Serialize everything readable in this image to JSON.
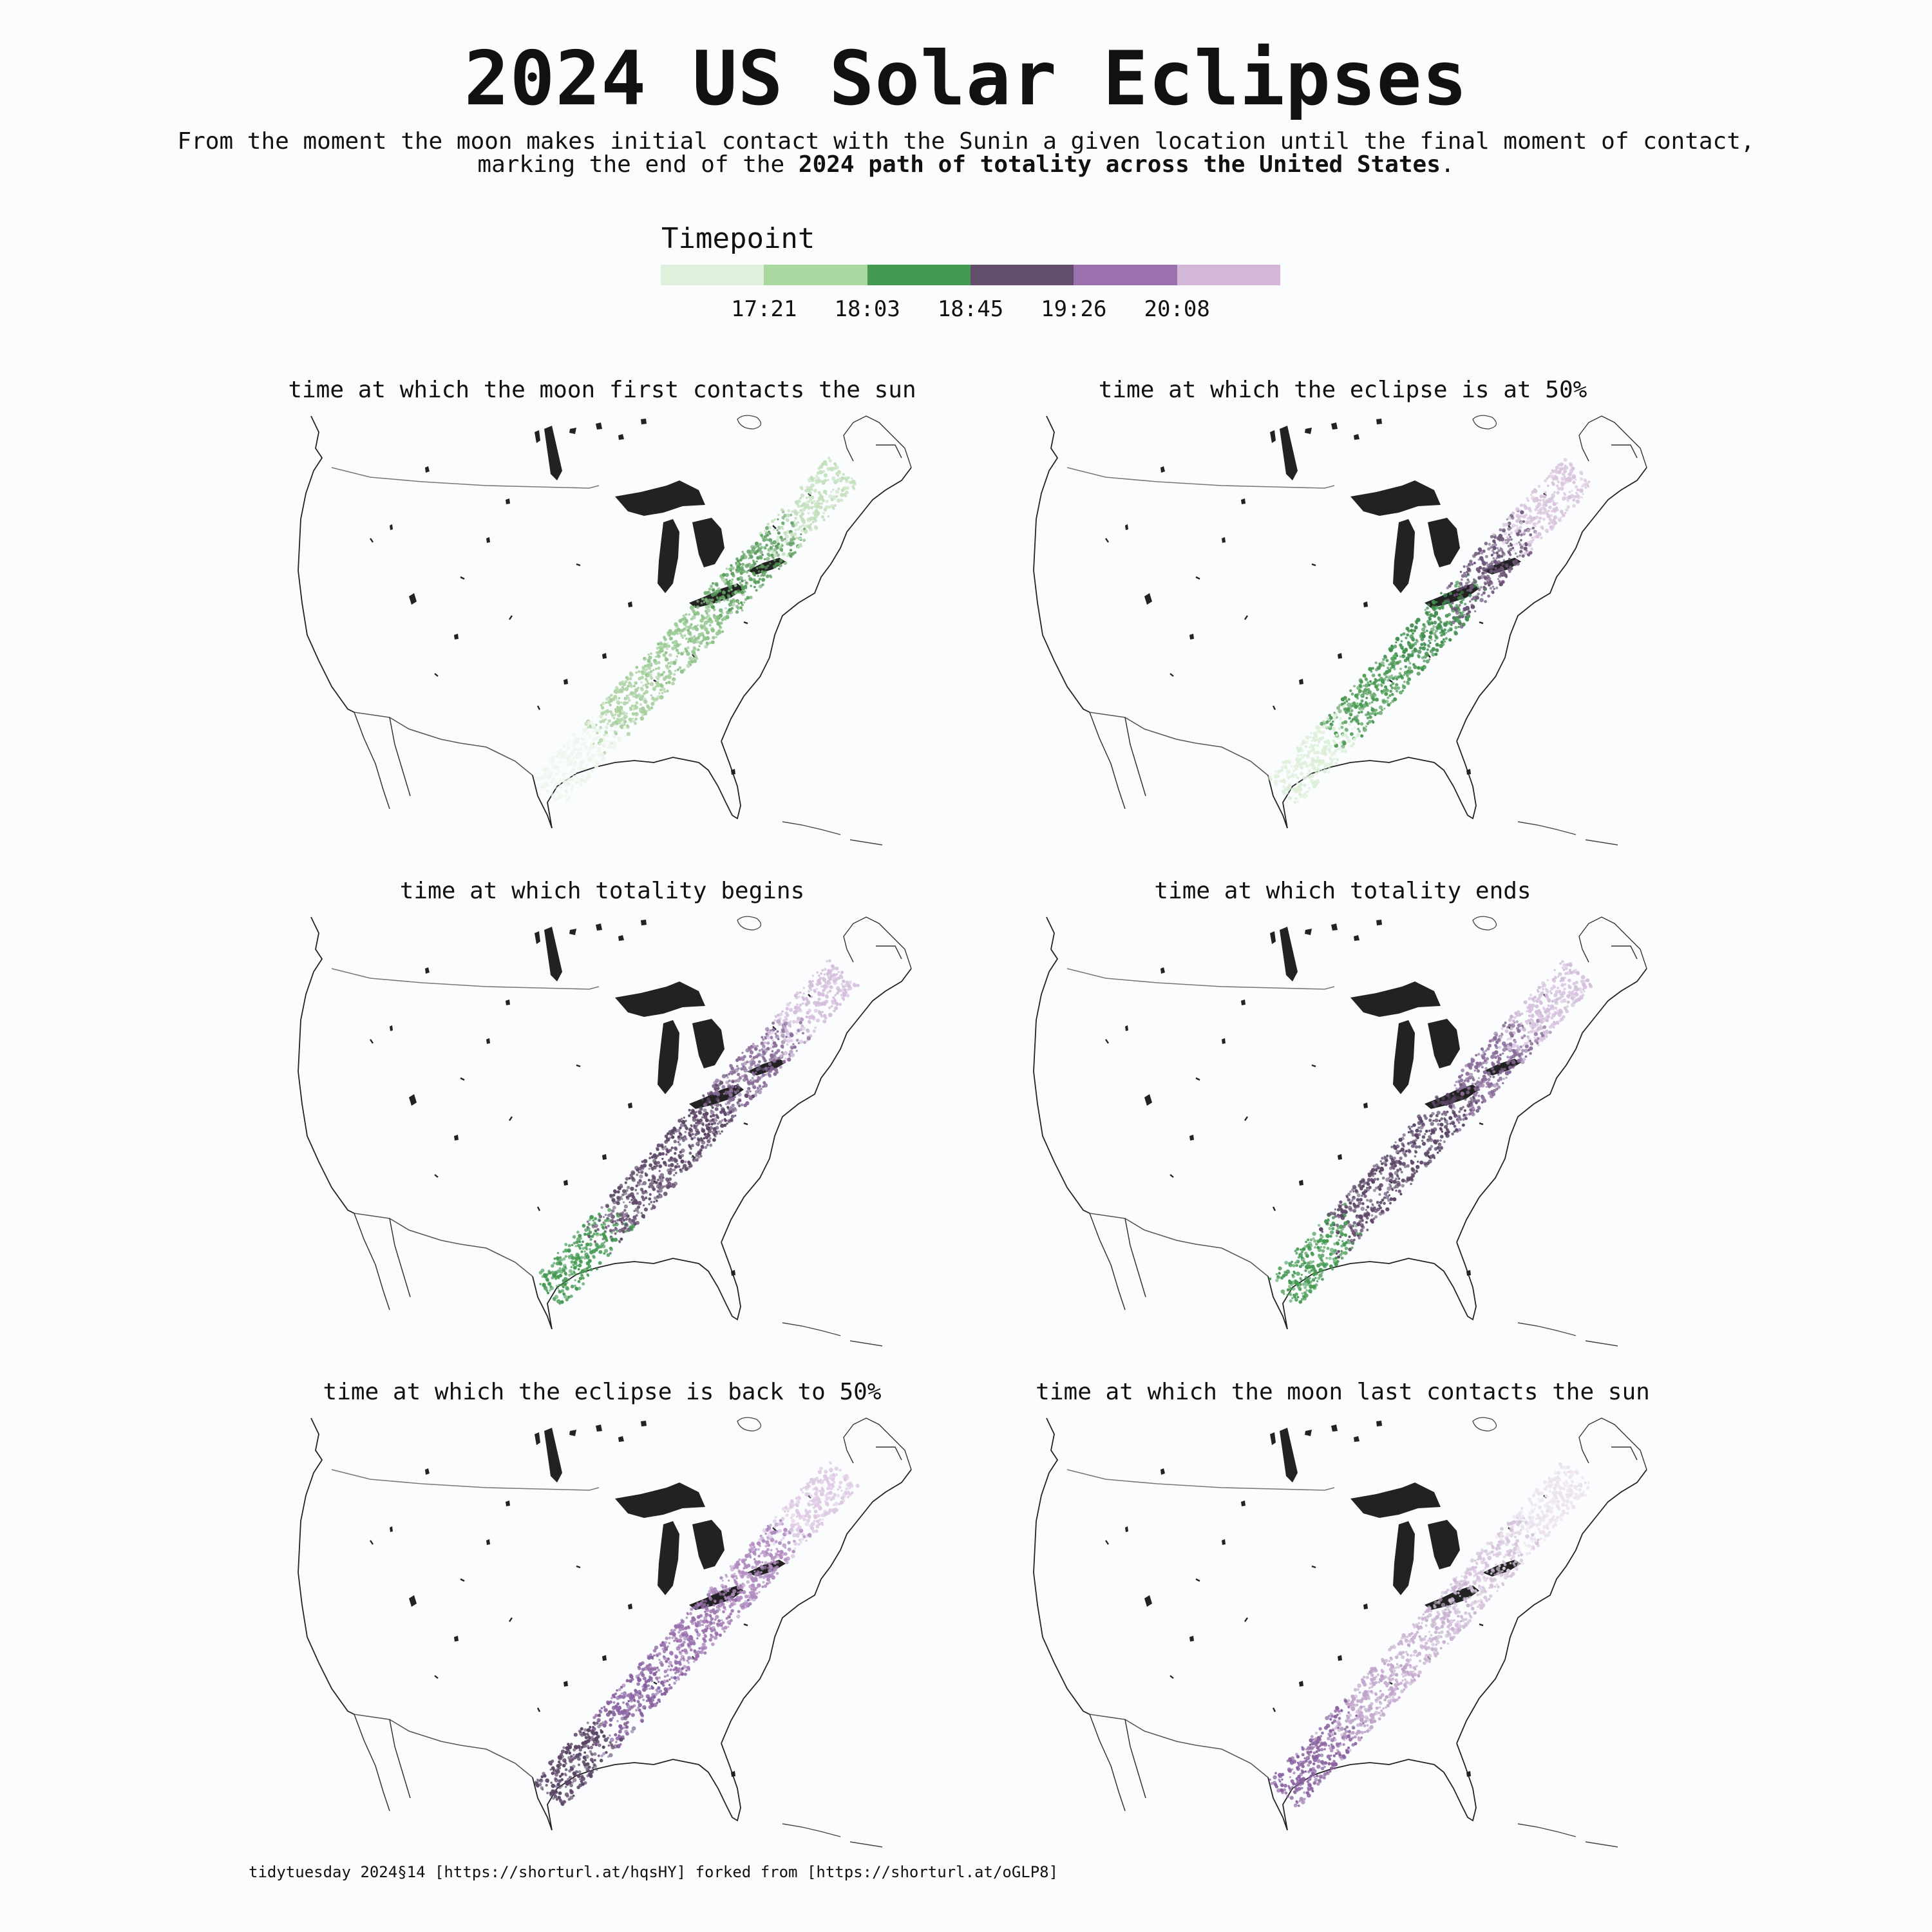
{
  "title": "2024 US Solar Eclipses",
  "subtitle": {
    "line1": "From the moment the moon makes initial contact with the Sunin a given location until the final moment of contact,",
    "line2_prefix": "marking the end of the ",
    "line2_bold": "2024 path of totality across the United States",
    "line2_suffix": "."
  },
  "legend": {
    "title": "Timepoint",
    "colors": [
      "#dff0dc",
      "#a9d9a0",
      "#459a52",
      "#624d6b",
      "#9a71ad",
      "#d4b6d9"
    ],
    "ticks": [
      "17:21",
      "18:03",
      "18:45",
      "19:26",
      "20:08"
    ]
  },
  "panels": [
    {
      "title": "time at which the moon first contacts the sun",
      "colors": [
        "#eef6ec",
        "#a9d0a0",
        "#8fc38a",
        "#5a9d5c",
        "#c3e0bd"
      ]
    },
    {
      "title": "time at which the eclipse is at 50%",
      "colors": [
        "#dcefd8",
        "#4a9a52",
        "#3f8f4d",
        "#6c5477",
        "#d9c4dd"
      ]
    },
    {
      "title": "time at which totality begins",
      "colors": [
        "#459a52",
        "#624d6b",
        "#5b4565",
        "#8a6d99",
        "#d3bedb"
      ]
    },
    {
      "title": "time at which totality ends",
      "colors": [
        "#459a52",
        "#5e4868",
        "#5a4565",
        "#8a6d99",
        "#d3bedb"
      ]
    },
    {
      "title": "time at which the eclipse is back to 50%",
      "colors": [
        "#5a4565",
        "#8862a0",
        "#9a71ad",
        "#b08cbf",
        "#ddc9e3"
      ]
    },
    {
      "title": "time at which the moon last contacts the sun",
      "colors": [
        "#8a62a0",
        "#bfa4c9",
        "#c9b3d1",
        "#d6c4dc",
        "#ece2ee"
      ]
    }
  ],
  "footer": "tidytuesday 2024§14 [https://shorturl.at/hqsHY] forked from [https://shorturl.at/oGLP8]"
}
